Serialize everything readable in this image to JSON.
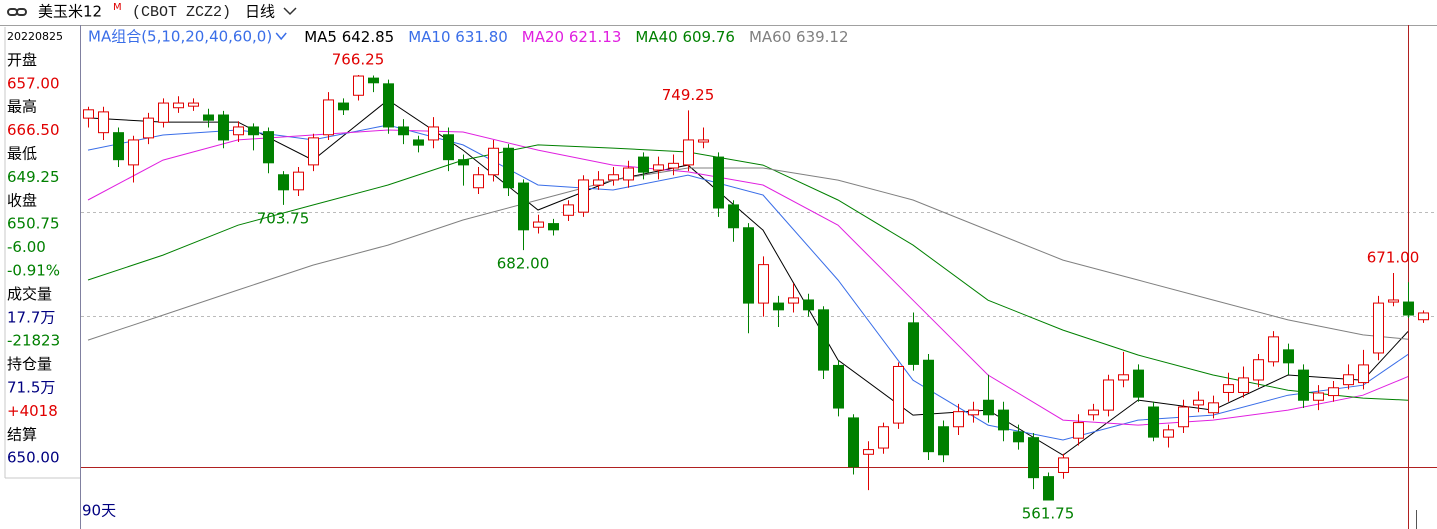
{
  "header": {
    "title": "美玉米12",
    "superscript": "M",
    "code": "(CBOT ZCZ2)",
    "period": "日线"
  },
  "info": [
    {
      "text": "20220825",
      "color": "#000000"
    },
    {
      "text": "开盘",
      "color": "#000000"
    },
    {
      "text": "657.00",
      "color": "#e00000"
    },
    {
      "text": "最高",
      "color": "#000000"
    },
    {
      "text": "666.50",
      "color": "#e00000"
    },
    {
      "text": "最低",
      "color": "#000000"
    },
    {
      "text": "649.25",
      "color": "#008000"
    },
    {
      "text": "收盘",
      "color": "#000000"
    },
    {
      "text": "650.75",
      "color": "#008000"
    },
    {
      "text": "-6.00",
      "color": "#008000"
    },
    {
      "text": "-0.91%",
      "color": "#008000"
    },
    {
      "text": "成交量",
      "color": "#000000"
    },
    {
      "text": "17.7万",
      "color": "#000080"
    },
    {
      "text": "-21823",
      "color": "#008000"
    },
    {
      "text": "持仓量",
      "color": "#000000"
    },
    {
      "text": "71.5万",
      "color": "#000080"
    },
    {
      "text": "+4018",
      "color": "#e00000"
    },
    {
      "text": "结算",
      "color": "#000000"
    },
    {
      "text": "650.00",
      "color": "#000080"
    }
  ],
  "chart_data": {
    "type": "candlestick",
    "ma_title": "MA组合(5,10,20,40,60,0)",
    "period_label": "90天",
    "up_color": "#e00000",
    "down_color": "#008000",
    "open": [
      745.5,
      738.5,
      738.5,
      723,
      736,
      743.5,
      750.5,
      751.25,
      747,
      747,
      737.5,
      741.25,
      739,
      718.25,
      711,
      723,
      737.5,
      752.75,
      756.5,
      764.75,
      762,
      741.25,
      735,
      735,
      737.5,
      725.5,
      712,
      718.25,
      731,
      714.25,
      693,
      694.75,
      698.75,
      700.25,
      713.25,
      715.75,
      715.75,
      726.75,
      720.5,
      721.5,
      723,
      734,
      726.75,
      703.75,
      692.75,
      656.5,
      656.5,
      656.5,
      658,
      653.25,
      626.5,
      601.25,
      583.75,
      586.75,
      598.75,
      647,
      629,
      597,
      597,
      602.75,
      609.75,
      605,
      594.5,
      591.75,
      573,
      575,
      591.5,
      602.75,
      605,
      619.5,
      624.25,
      606.5,
      592,
      597,
      607.5,
      603.75,
      613.5,
      613.5,
      619.5,
      628.25,
      634,
      624.25,
      609.75,
      612,
      617.25,
      618.25,
      632.5,
      657,
      657,
      648.5
    ],
    "high": [
      751,
      751,
      741,
      737,
      748,
      755,
      756,
      755,
      750,
      749,
      744,
      743,
      741,
      720,
      722,
      738,
      758,
      755,
      766.25,
      766,
      764,
      745,
      737,
      746,
      741,
      728,
      722,
      735,
      733,
      716,
      699,
      697,
      706,
      718,
      720,
      722,
      725,
      729,
      727,
      728,
      749.25,
      741,
      729,
      706,
      695,
      679,
      660,
      666,
      661,
      655,
      629,
      603,
      590,
      599,
      628,
      652,
      632,
      600,
      608,
      609,
      622,
      609,
      598,
      594,
      575,
      584,
      603,
      608,
      622,
      633,
      627,
      609,
      598,
      610,
      614,
      612,
      623,
      626,
      632,
      643,
      637,
      627,
      617,
      619,
      627,
      634,
      660,
      671,
      666.5,
      653
    ],
    "low": [
      741,
      735,
      722,
      714.5,
      733,
      741,
      748,
      749,
      741,
      731,
      734,
      730,
      719,
      703.75,
      708,
      720,
      735,
      747,
      754,
      758,
      738,
      733,
      729,
      731,
      720,
      713,
      709,
      715,
      708,
      682,
      690,
      689,
      696,
      698,
      711,
      713,
      712,
      716,
      716,
      718,
      720,
      731,
      698,
      686,
      642,
      650,
      645,
      652,
      650,
      620,
      602,
      574,
      566.5,
      584,
      596,
      624,
      581,
      580,
      593,
      599,
      599,
      590,
      586,
      567,
      561.75,
      572,
      588,
      600,
      602,
      616,
      609,
      590,
      587,
      594,
      604,
      601,
      609,
      611,
      616,
      626,
      622,
      606,
      605,
      609,
      615,
      615,
      629,
      655,
      649.25,
      647
    ],
    "close": [
      749.5,
      748.5,
      725.5,
      735,
      745.5,
      752.75,
      752.75,
      752.75,
      744.5,
      735,
      741.25,
      737.5,
      724,
      711,
      719.5,
      736,
      754.25,
      749.5,
      765.75,
      762.5,
      741.25,
      737.5,
      732.5,
      741.25,
      725.5,
      723,
      718.25,
      731,
      712,
      691.75,
      695.5,
      691.75,
      703.75,
      715.75,
      715.75,
      718.25,
      721.5,
      719.5,
      723,
      723.75,
      735,
      735,
      702.25,
      692.75,
      656.5,
      675,
      653.25,
      659,
      653.25,
      624.25,
      606,
      577.75,
      586,
      597,
      626,
      627,
      585,
      583.5,
      604.25,
      605,
      602.75,
      595.5,
      589.75,
      572.5,
      561.75,
      582,
      599,
      605,
      619.5,
      622,
      611.25,
      592,
      595.5,
      606.5,
      609.75,
      608.5,
      617.25,
      620.5,
      629.25,
      640.25,
      627.75,
      609.75,
      613.25,
      615.75,
      622,
      626.75,
      656.5,
      658,
      650.75,
      651.75
    ],
    "ma_x": [
      0,
      5,
      10,
      15,
      20,
      25,
      30,
      35,
      40,
      45,
      50,
      55,
      60,
      65,
      70,
      75,
      80,
      85,
      88
    ],
    "series": [
      {
        "name": "MA5",
        "color": "#000000",
        "values": [
          745.6,
          743.6,
          743.6,
          725.3,
          754.2,
          730.1,
          701.3,
          715.7,
          722.9,
          691.6,
          629.1,
          602.6,
          605.0,
          583.3,
          609.8,
          605.0,
          621.9,
          619.4,
          642.85
        ],
        "value_labels": [
          null,
          null,
          null,
          null,
          null,
          null,
          null,
          null,
          null,
          null,
          null,
          null,
          null,
          null,
          null,
          null,
          null,
          null,
          "642.85"
        ]
      },
      {
        "name": "MA10",
        "color": "#3a6ee8",
        "values": [
          730.1,
          737.4,
          739.8,
          735.0,
          742.2,
          732.6,
          713.3,
          710.9,
          718.1,
          708.5,
          667.6,
          619.4,
          597.8,
          590.6,
          600.2,
          602.6,
          612.2,
          617.0,
          631.8
        ],
        "value_labels": [
          null,
          null,
          null,
          null,
          null,
          null,
          null,
          null,
          null,
          null,
          null,
          null,
          null,
          null,
          null,
          null,
          null,
          null,
          "631.80"
        ]
      },
      {
        "name": "MA20",
        "color": "#e020e0",
        "values": [
          706.1,
          725.3,
          735.0,
          737.4,
          739.8,
          738.8,
          730.1,
          722.9,
          719.6,
          713.3,
          694.0,
          657.9,
          621.9,
          600.2,
          597.8,
          600.2,
          605.0,
          612.2,
          621.13
        ],
        "value_labels": [
          null,
          null,
          null,
          null,
          null,
          null,
          null,
          null,
          null,
          null,
          null,
          null,
          null,
          null,
          null,
          null,
          null,
          null,
          "621.13"
        ]
      },
      {
        "name": "MA40",
        "color": "#008000",
        "values": [
          667.6,
          679.6,
          694.0,
          703.7,
          713.3,
          725.3,
          732.6,
          731.1,
          729.2,
          722.9,
          706.1,
          684.4,
          657.9,
          643.5,
          631.5,
          621.9,
          614.6,
          610.8,
          609.76
        ],
        "value_labels": [
          null,
          null,
          null,
          null,
          null,
          null,
          null,
          null,
          null,
          null,
          null,
          null,
          null,
          null,
          null,
          null,
          null,
          null,
          "609.76"
        ]
      },
      {
        "name": "MA60",
        "color": "#808080",
        "values": [
          638.7,
          650.7,
          662.8,
          674.8,
          684.4,
          696.5,
          706.1,
          715.7,
          721.5,
          721.5,
          715.7,
          706.1,
          691.6,
          677.2,
          667.6,
          658.0,
          648.4,
          641.2,
          639.12
        ],
        "value_labels": [
          null,
          null,
          null,
          null,
          null,
          null,
          null,
          null,
          null,
          null,
          null,
          null,
          null,
          null,
          null,
          null,
          null,
          null,
          "639.12"
        ]
      }
    ],
    "annotations": [
      {
        "index": 18,
        "field": "high",
        "label": "766.25",
        "color": "#e00000"
      },
      {
        "index": 40,
        "field": "high",
        "label": "749.25",
        "color": "#e00000"
      },
      {
        "index": 13,
        "field": "low",
        "label": "703.75",
        "color": "#008000"
      },
      {
        "index": 29,
        "field": "low",
        "label": "682.00",
        "color": "#008000"
      },
      {
        "index": 64,
        "field": "low",
        "label": "561.75",
        "color": "#008000"
      },
      {
        "index": 87,
        "field": "high",
        "label": "671.00",
        "color": "#e00000"
      }
    ]
  }
}
